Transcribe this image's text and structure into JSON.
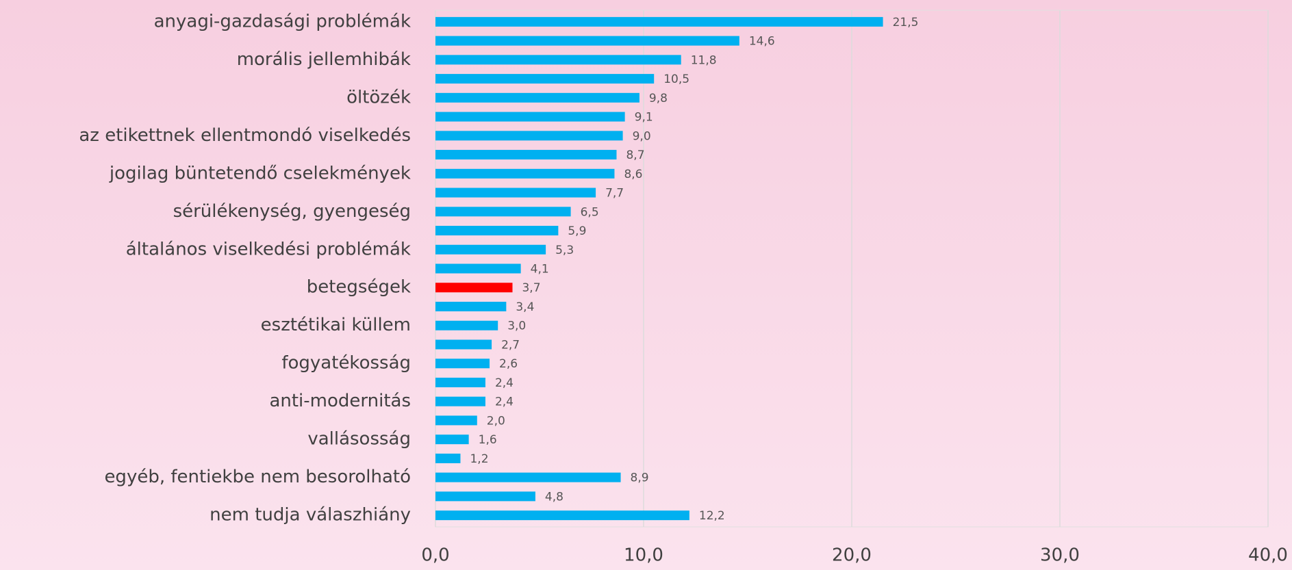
{
  "chart_data": {
    "type": "barh",
    "categories": [
      "anyagi-gazdasági problémák",
      null,
      "morális jellemhibák",
      null,
      "öltözék",
      null,
      "az etikettnek ellentmondó viselkedés",
      null,
      "jogilag büntetendő cselekmények",
      null,
      "sérülékenység, gyengeség",
      null,
      "általános viselkedési problémák",
      null,
      "betegségek",
      null,
      "esztétikai küllem",
      null,
      "fogyatékosság",
      null,
      "anti-modernitás",
      null,
      "vallásosság",
      null,
      "egyéb, fentiekbe nem besorolható",
      null,
      "nem tudja válaszhiány"
    ],
    "values": [
      21.5,
      14.6,
      11.8,
      10.5,
      9.8,
      9.1,
      9.0,
      8.7,
      8.6,
      7.7,
      6.5,
      5.9,
      5.3,
      4.1,
      3.7,
      3.4,
      3.0,
      2.7,
      2.6,
      2.4,
      2.4,
      2.0,
      1.6,
      1.2,
      8.9,
      4.8,
      12.2
    ],
    "value_labels": [
      "21,5",
      "14,6",
      "11,8",
      "10,5",
      "9,8",
      "9,1",
      "9,0",
      "8,7",
      "8,6",
      "7,7",
      "6,5",
      "5,9",
      "5,3",
      "4,1",
      "3,7",
      "3,4",
      "3,0",
      "2,7",
      "2,6",
      "2,4",
      "2,4",
      "2,0",
      "1,6",
      "1,2",
      "8,9",
      "4,8",
      "12,2"
    ],
    "colors": [
      "#00b0f0",
      "#00b0f0",
      "#00b0f0",
      "#00b0f0",
      "#00b0f0",
      "#00b0f0",
      "#00b0f0",
      "#00b0f0",
      "#00b0f0",
      "#00b0f0",
      "#00b0f0",
      "#00b0f0",
      "#00b0f0",
      "#00b0f0",
      "#ff0000",
      "#00b0f0",
      "#00b0f0",
      "#00b0f0",
      "#00b0f0",
      "#00b0f0",
      "#00b0f0",
      "#00b0f0",
      "#00b0f0",
      "#00b0f0",
      "#00b0f0",
      "#00b0f0",
      "#00b0f0"
    ],
    "xlim": [
      0,
      40
    ],
    "xticks": [
      {
        "value": 0,
        "label": "0,0"
      },
      {
        "value": 10,
        "label": "10,0"
      },
      {
        "value": 20,
        "label": "20,0"
      },
      {
        "value": 30,
        "label": "30,0"
      },
      {
        "value": 40,
        "label": "40,0"
      }
    ],
    "grid": true
  }
}
